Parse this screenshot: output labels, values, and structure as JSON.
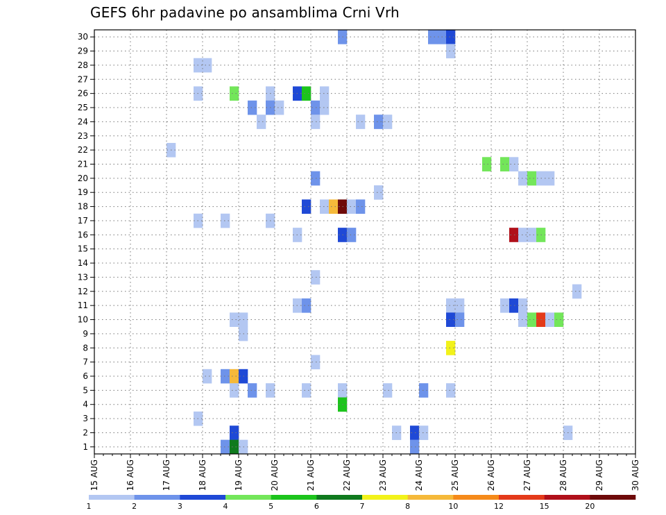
{
  "title": "GEFS 6hr padavine po ansamblima Crni Vrh",
  "colors": {
    "c1": "#b3c7f2",
    "c2": "#6e93ea",
    "c3": "#1f49d6",
    "c4": "#73e65a",
    "c5": "#1cc41c",
    "c6": "#0f7a1e",
    "c7": "#f2f21a",
    "c8": "#f5b93a",
    "c10": "#f58a1a",
    "c12": "#e43a1a",
    "c15": "#b0101a",
    "c20": "#6e0a0a"
  },
  "chart_data": {
    "type": "heatmap",
    "title": "GEFS 6hr padavine po ansamblima Crni Vrh",
    "x_tick_labels": [
      "15 AUG",
      "16 AUG",
      "17 AUG",
      "18 AUG",
      "19 AUG",
      "20 AUG",
      "21 AUG",
      "22 AUG",
      "23 AUG",
      "24 AUG",
      "25 AUG",
      "26 AUG",
      "27 AUG",
      "28 AUG",
      "29 AUG",
      "30 AUG"
    ],
    "x_unit": "6-hour step (0 = 15 AUG 00Z)",
    "x_range": [
      0,
      60
    ],
    "y_tick_labels": [
      "1",
      "2",
      "3",
      "4",
      "5",
      "6",
      "7",
      "8",
      "9",
      "10",
      "11",
      "12",
      "13",
      "14",
      "15",
      "16",
      "17",
      "18",
      "19",
      "20",
      "21",
      "22",
      "23",
      "24",
      "25",
      "26",
      "27",
      "28",
      "29",
      "30"
    ],
    "y_range": [
      1,
      30
    ],
    "grid": true,
    "legend_position": "bottom",
    "legend": {
      "thresholds": [
        1,
        2,
        3,
        4,
        5,
        6,
        7,
        8,
        10,
        12,
        15,
        20
      ],
      "labels": [
        "1",
        "2",
        "3",
        "4",
        "5",
        "6",
        "7",
        "8",
        "10",
        "12",
        "15",
        "20"
      ],
      "colors": [
        "c1",
        "c2",
        "c3",
        "c4",
        "c5",
        "c6",
        "c7",
        "c8",
        "c10",
        "c12",
        "c15",
        "c20"
      ]
    },
    "cells": [
      [
        27,
        30,
        "c2"
      ],
      [
        37,
        30,
        "c2"
      ],
      [
        38,
        30,
        "c2"
      ],
      [
        39,
        30,
        "c3"
      ],
      [
        39,
        29,
        "c1"
      ],
      [
        11,
        28,
        "c1"
      ],
      [
        12,
        28,
        "c1"
      ],
      [
        11,
        26,
        "c1"
      ],
      [
        15,
        26,
        "c4"
      ],
      [
        19,
        26,
        "c1"
      ],
      [
        22,
        26,
        "c3"
      ],
      [
        23,
        26,
        "c5"
      ],
      [
        25,
        26,
        "c1"
      ],
      [
        17,
        25,
        "c2"
      ],
      [
        19,
        25,
        "c2"
      ],
      [
        20,
        25,
        "c1"
      ],
      [
        24,
        25,
        "c2"
      ],
      [
        25,
        25,
        "c1"
      ],
      [
        18,
        24,
        "c1"
      ],
      [
        24,
        24,
        "c1"
      ],
      [
        29,
        24,
        "c1"
      ],
      [
        31,
        24,
        "c2"
      ],
      [
        32,
        24,
        "c1"
      ],
      [
        8,
        22,
        "c1"
      ],
      [
        43,
        21,
        "c4"
      ],
      [
        45,
        21,
        "c4"
      ],
      [
        46,
        21,
        "c1"
      ],
      [
        24,
        20,
        "c2"
      ],
      [
        47,
        20,
        "c1"
      ],
      [
        48,
        20,
        "c4"
      ],
      [
        49,
        20,
        "c1"
      ],
      [
        50,
        20,
        "c1"
      ],
      [
        31,
        19,
        "c1"
      ],
      [
        23,
        18,
        "c3"
      ],
      [
        25,
        18,
        "c1"
      ],
      [
        26,
        18,
        "c8"
      ],
      [
        27,
        18,
        "c20"
      ],
      [
        28,
        18,
        "c1"
      ],
      [
        29,
        18,
        "c2"
      ],
      [
        11,
        17,
        "c1"
      ],
      [
        14,
        17,
        "c1"
      ],
      [
        19,
        17,
        "c1"
      ],
      [
        22,
        16,
        "c1"
      ],
      [
        27,
        16,
        "c3"
      ],
      [
        28,
        16,
        "c2"
      ],
      [
        46,
        16,
        "c15"
      ],
      [
        47,
        16,
        "c1"
      ],
      [
        48,
        16,
        "c1"
      ],
      [
        49,
        16,
        "c4"
      ],
      [
        24,
        13,
        "c1"
      ],
      [
        53,
        12,
        "c1"
      ],
      [
        22,
        11,
        "c1"
      ],
      [
        23,
        11,
        "c2"
      ],
      [
        39,
        11,
        "c1"
      ],
      [
        40,
        11,
        "c1"
      ],
      [
        45,
        11,
        "c1"
      ],
      [
        46,
        11,
        "c3"
      ],
      [
        47,
        11,
        "c1"
      ],
      [
        15,
        10,
        "c1"
      ],
      [
        16,
        10,
        "c1"
      ],
      [
        39,
        10,
        "c3"
      ],
      [
        40,
        10,
        "c2"
      ],
      [
        47,
        10,
        "c1"
      ],
      [
        48,
        10,
        "c4"
      ],
      [
        49,
        10,
        "c12"
      ],
      [
        50,
        10,
        "c1"
      ],
      [
        51,
        10,
        "c4"
      ],
      [
        16,
        9,
        "c1"
      ],
      [
        39,
        8,
        "c7"
      ],
      [
        24,
        7,
        "c1"
      ],
      [
        12,
        6,
        "c1"
      ],
      [
        14,
        6,
        "c2"
      ],
      [
        15,
        6,
        "c8"
      ],
      [
        16,
        6,
        "c3"
      ],
      [
        15,
        5,
        "c1"
      ],
      [
        17,
        5,
        "c2"
      ],
      [
        19,
        5,
        "c1"
      ],
      [
        23,
        5,
        "c1"
      ],
      [
        27,
        5,
        "c1"
      ],
      [
        32,
        5,
        "c1"
      ],
      [
        36,
        5,
        "c2"
      ],
      [
        39,
        5,
        "c1"
      ],
      [
        27,
        4,
        "c5"
      ],
      [
        11,
        3,
        "c1"
      ],
      [
        15,
        2,
        "c3"
      ],
      [
        33,
        2,
        "c1"
      ],
      [
        35,
        2,
        "c3"
      ],
      [
        36,
        2,
        "c1"
      ],
      [
        52,
        2,
        "c1"
      ],
      [
        14,
        1,
        "c2"
      ],
      [
        15,
        1,
        "c6"
      ],
      [
        16,
        1,
        "c1"
      ],
      [
        35,
        1,
        "c2"
      ]
    ]
  }
}
